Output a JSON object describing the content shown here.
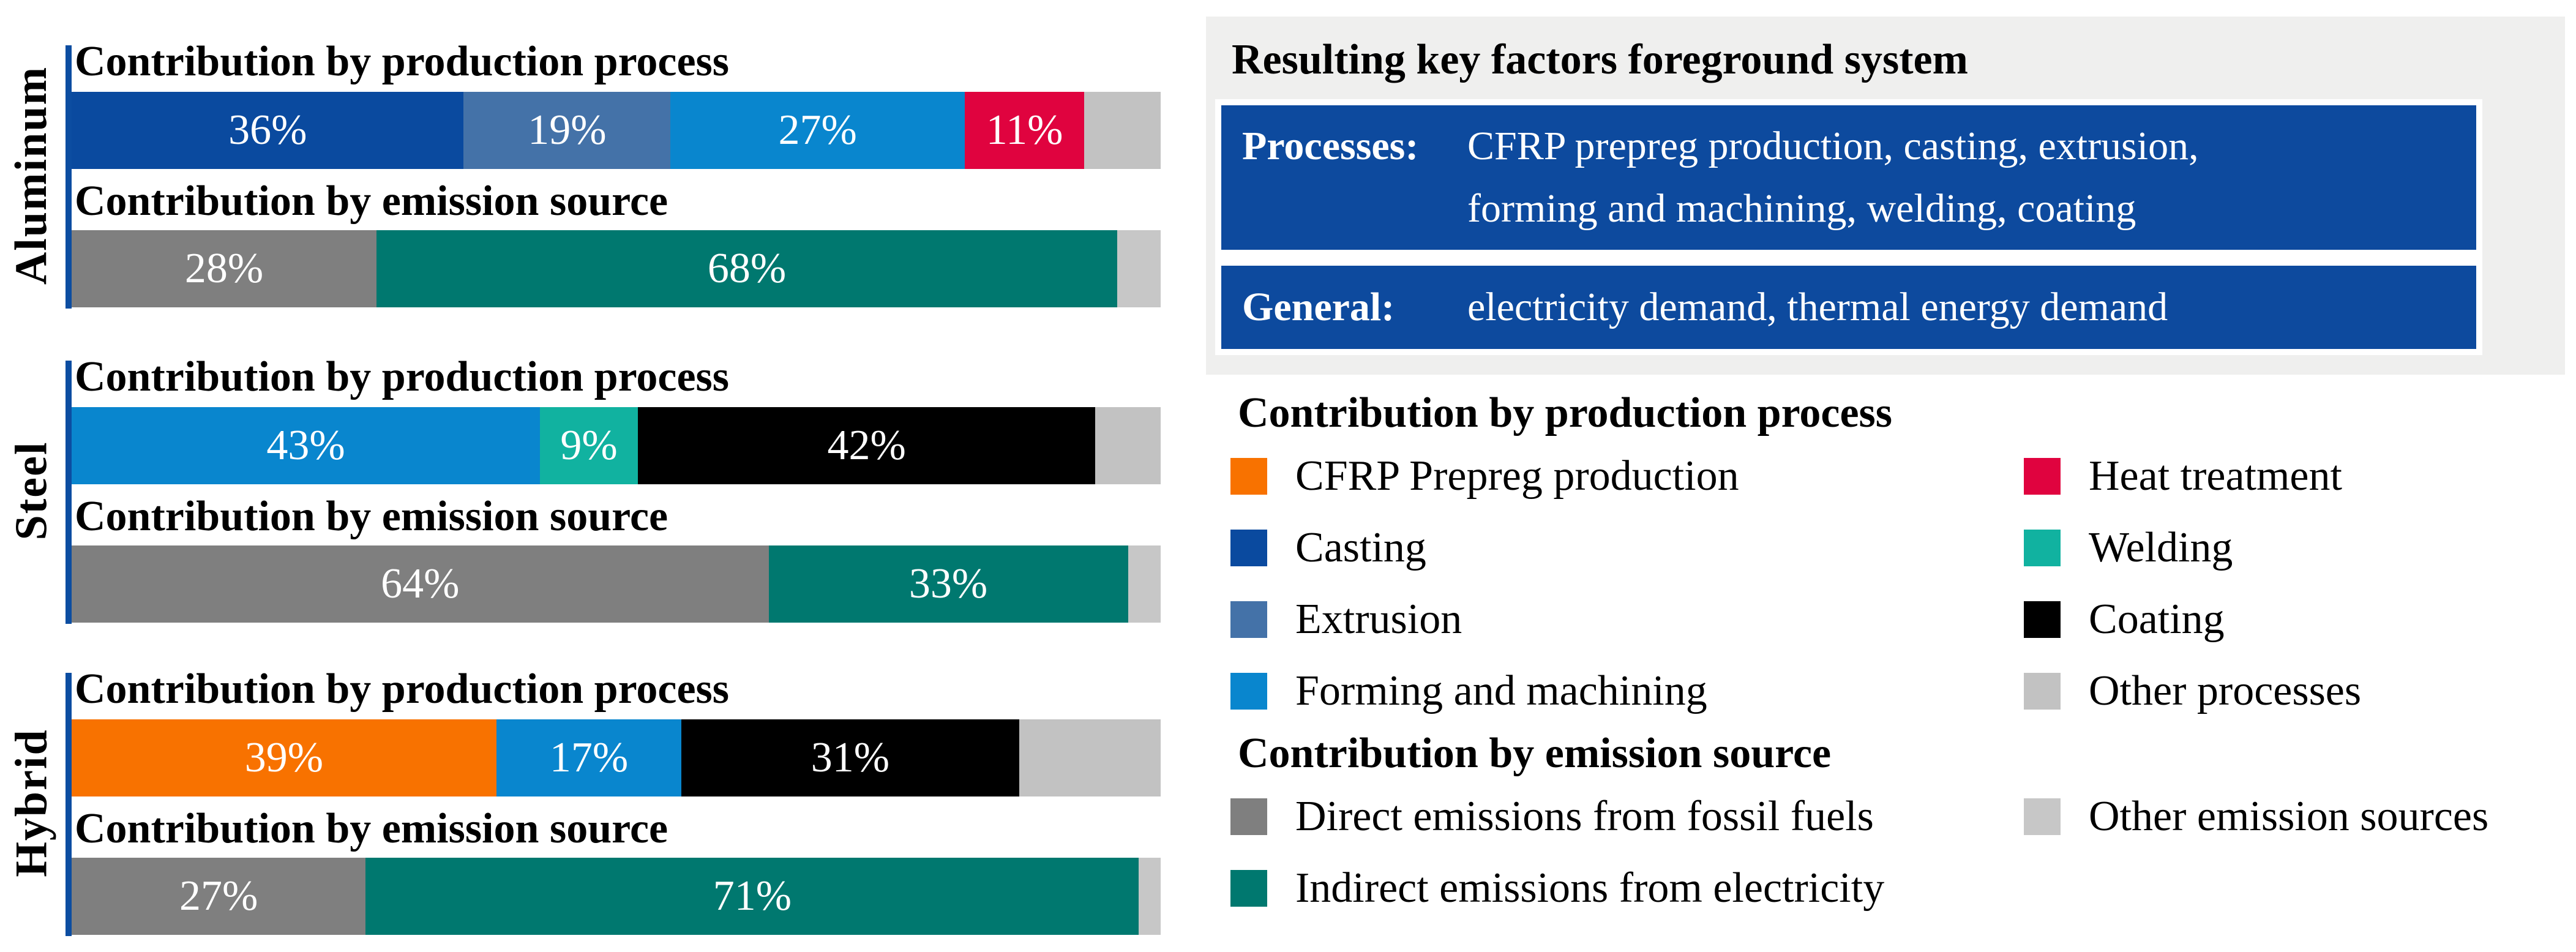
{
  "colors": {
    "cfrp": "#F87200",
    "casting": "#0A4A9F",
    "extrusion": "#4472A8",
    "forming": "#0986CE",
    "heat": "#E0033F",
    "welding": "#11B2A0",
    "coating": "#000000",
    "other_process": "#C2C2C2",
    "direct": "#7F7F7F",
    "indirect": "#00786F",
    "other_emission": "#C7C7C7",
    "axis_line": "#0C4DA1",
    "panel_bg": "#EFEFEE",
    "info_box_blue": "#0D4A9E"
  },
  "chart_data": {
    "type": "bar",
    "subtype": "horizontal-stacked-percent",
    "unit": "%",
    "xlim": [
      0,
      100
    ],
    "bar_titles": {
      "production": "Contribution by production process",
      "emission": "Contribution by emission source"
    },
    "groups": [
      {
        "material": "Aluminum",
        "production": [
          {
            "key": "casting",
            "name": "Casting",
            "value": 36,
            "label": "36%"
          },
          {
            "key": "extrusion",
            "name": "Extrusion",
            "value": 19,
            "label": "19%"
          },
          {
            "key": "forming",
            "name": "Forming and machining",
            "value": 27,
            "label": "27%"
          },
          {
            "key": "heat",
            "name": "Heat treatment",
            "value": 11,
            "label": "11%"
          },
          {
            "key": "other_process",
            "name": "Other processes",
            "value": 7,
            "label": ""
          }
        ],
        "emission": [
          {
            "key": "direct",
            "name": "Direct emissions from fossil fuels",
            "value": 28,
            "label": "28%"
          },
          {
            "key": "indirect",
            "name": "Indirect emissions from electricity",
            "value": 68,
            "label": "68%"
          },
          {
            "key": "other_emission",
            "name": "Other emission sources",
            "value": 4,
            "label": ""
          }
        ]
      },
      {
        "material": "Steel",
        "production": [
          {
            "key": "forming",
            "name": "Forming and machining",
            "value": 43,
            "label": "43%"
          },
          {
            "key": "welding",
            "name": "Welding",
            "value": 9,
            "label": "9%"
          },
          {
            "key": "coating",
            "name": "Coating",
            "value": 42,
            "label": "42%"
          },
          {
            "key": "other_process",
            "name": "Other processes",
            "value": 6,
            "label": ""
          }
        ],
        "emission": [
          {
            "key": "direct",
            "name": "Direct emissions from fossil fuels",
            "value": 64,
            "label": "64%"
          },
          {
            "key": "indirect",
            "name": "Indirect emissions from electricity",
            "value": 33,
            "label": "33%"
          },
          {
            "key": "other_emission",
            "name": "Other emission sources",
            "value": 3,
            "label": ""
          }
        ]
      },
      {
        "material": "Hybrid",
        "production": [
          {
            "key": "cfrp",
            "name": "CFRP Prepreg production",
            "value": 39,
            "label": "39%"
          },
          {
            "key": "forming",
            "name": "Forming and machining",
            "value": 17,
            "label": "17%"
          },
          {
            "key": "coating",
            "name": "Coating",
            "value": 31,
            "label": "31%"
          },
          {
            "key": "other_process",
            "name": "Other processes",
            "value": 13,
            "label": ""
          }
        ],
        "emission": [
          {
            "key": "direct",
            "name": "Direct emissions from fossil fuels",
            "value": 27,
            "label": "27%"
          },
          {
            "key": "indirect",
            "name": "Indirect emissions from electricity",
            "value": 71,
            "label": "71%"
          },
          {
            "key": "other_emission",
            "name": "Other emission sources",
            "value": 2,
            "label": ""
          }
        ]
      }
    ]
  },
  "key_factors_panel": {
    "title": "Resulting key factors foreground system",
    "boxes": [
      {
        "label": "Processes:",
        "lines": [
          "CFRP prepreg production, casting, extrusion,",
          "forming and machining, welding, coating"
        ]
      },
      {
        "label": "General:",
        "lines": [
          "electricity demand, thermal energy demand"
        ]
      }
    ]
  },
  "legend_production": {
    "title": "Contribution by production process",
    "columns": [
      [
        {
          "key": "cfrp",
          "label": "CFRP Prepreg production"
        },
        {
          "key": "casting",
          "label": "Casting"
        },
        {
          "key": "extrusion",
          "label": "Extrusion"
        },
        {
          "key": "forming",
          "label": "Forming and machining"
        }
      ],
      [
        {
          "key": "heat",
          "label": "Heat treatment"
        },
        {
          "key": "welding",
          "label": "Welding"
        },
        {
          "key": "coating",
          "label": "Coating"
        },
        {
          "key": "other_process",
          "label": "Other processes"
        }
      ]
    ]
  },
  "legend_emission": {
    "title": "Contribution by emission source",
    "columns": [
      [
        {
          "key": "direct",
          "label": "Direct emissions from fossil fuels"
        },
        {
          "key": "indirect",
          "label": "Indirect emissions from electricity"
        }
      ],
      [
        {
          "key": "other_emission",
          "label": "Other emission sources"
        }
      ]
    ]
  }
}
